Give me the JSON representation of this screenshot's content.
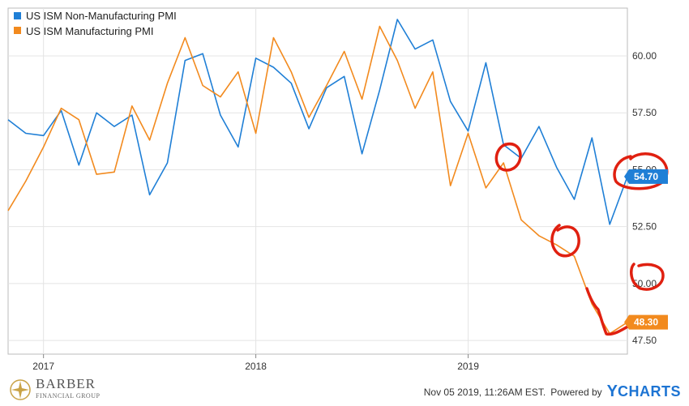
{
  "chart_data": {
    "type": "line",
    "title": "",
    "xlabel": "",
    "ylabel": "",
    "x_tick_labels": [
      "2017",
      "2018",
      "2019"
    ],
    "y_tick_labels": [
      "47.50",
      "50.00",
      "52.50",
      "55.00",
      "57.50",
      "60.00"
    ],
    "ylim": [
      46.9,
      62.1
    ],
    "grid": true,
    "legend_position": "top-left",
    "x": [
      "2016-11",
      "2016-12",
      "2017-01",
      "2017-02",
      "2017-03",
      "2017-04",
      "2017-05",
      "2017-06",
      "2017-07",
      "2017-08",
      "2017-09",
      "2017-10",
      "2017-11",
      "2017-12",
      "2018-01",
      "2018-02",
      "2018-03",
      "2018-04",
      "2018-05",
      "2018-06",
      "2018-07",
      "2018-08",
      "2018-09",
      "2018-10",
      "2018-11",
      "2018-12",
      "2019-01",
      "2019-02",
      "2019-03",
      "2019-04",
      "2019-05",
      "2019-06",
      "2019-07",
      "2019-08",
      "2019-09",
      "2019-10"
    ],
    "series": [
      {
        "name": "US ISM Non-Manufacturing PMI",
        "color": "#1f7fd6",
        "values": [
          57.2,
          56.6,
          56.5,
          57.6,
          55.2,
          57.5,
          56.9,
          57.4,
          53.9,
          55.3,
          59.8,
          60.1,
          57.4,
          56.0,
          59.9,
          59.5,
          58.8,
          56.8,
          58.6,
          59.1,
          55.7,
          58.5,
          61.6,
          60.3,
          60.7,
          58.0,
          56.7,
          59.7,
          56.1,
          55.5,
          56.9,
          55.1,
          53.7,
          56.4,
          52.6,
          54.7
        ],
        "last_value_label": "54.70"
      },
      {
        "name": "US ISM Manufacturing PMI",
        "color": "#f28a1e",
        "values": [
          53.2,
          54.5,
          56.0,
          57.7,
          57.2,
          54.8,
          54.9,
          57.8,
          56.3,
          58.8,
          60.8,
          58.7,
          58.2,
          59.3,
          56.6,
          60.8,
          59.3,
          57.3,
          58.7,
          60.2,
          58.1,
          61.3,
          59.8,
          57.7,
          59.3,
          54.3,
          56.6,
          54.2,
          55.3,
          52.8,
          52.1,
          51.7,
          51.2,
          49.1,
          47.8,
          48.3
        ],
        "last_value_label": "48.30"
      }
    ]
  },
  "footer": {
    "logo_name": "BARBER",
    "logo_sub": "FINANCIAL GROUP",
    "timestamp": "Nov 05 2019, 11:26AM EST.",
    "powered_by": "Powered by",
    "brand_y": "Y",
    "brand_rest": "CHARTS"
  },
  "colors": {
    "annotation": "#e02010",
    "grid": "#e4e4e4",
    "frame": "#bbbbbb"
  }
}
